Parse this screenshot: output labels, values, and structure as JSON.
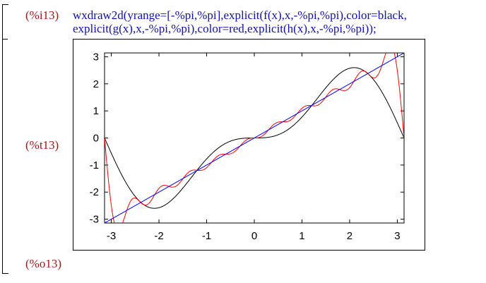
{
  "cell": {
    "input_label": "(%i13)",
    "command_line1": "wxdraw2d(yrange=[-%pi,%pi],explicit(f(x),x,-%pi,%pi),color=black,",
    "command_line2": "explicit(g(x),x,-%pi,%pi),color=red,explicit(h(x),x,-%pi,%pi));",
    "plot_label": "(%t13)",
    "output_label": "(%o13)"
  },
  "colors": {
    "label": "#a01818",
    "input_text": "#1010b0",
    "series_black": "#000000",
    "series_red": "#ff0000",
    "series_blue": "#0000ff"
  },
  "chart_data": {
    "type": "line",
    "xlim": [
      -3.1416,
      3.1416
    ],
    "ylim": [
      -3.1416,
      3.1416
    ],
    "x_ticks": [
      "-3",
      "-2",
      "-1",
      "0",
      "1",
      "2",
      "3"
    ],
    "y_ticks": [
      "3",
      "2",
      "1",
      "0",
      "-1",
      "-2",
      "-3"
    ],
    "x_tick_values": [
      -3,
      -2,
      -1,
      0,
      1,
      2,
      3
    ],
    "y_tick_values": [
      3,
      2,
      1,
      0,
      -1,
      -2,
      -3
    ],
    "grid": false,
    "legend": "none",
    "series": [
      {
        "color": "#000000",
        "fourier_terms": 2
      },
      {
        "color": "#ff0000",
        "fourier_terms": 10
      },
      {
        "color": "#0000ff",
        "function": "x"
      }
    ]
  }
}
